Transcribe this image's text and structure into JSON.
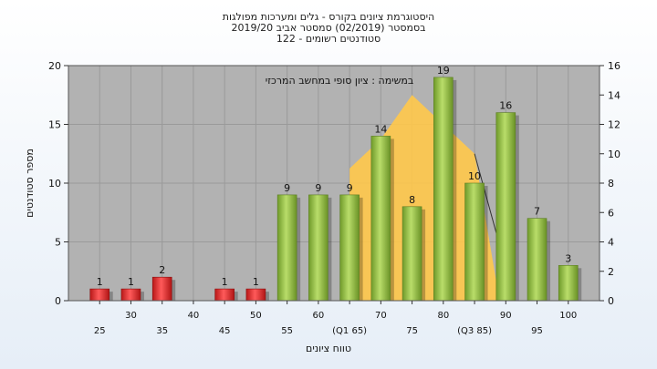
{
  "chart_data": {
    "type": "bar",
    "title_lines": [
      "היסטוגרמת ציונים בקורס - גלים ומערכות מפולגות",
      "בסמסטר  (02/2019)  סמסטר אביב  2019/20",
      "סטודנטים רשומים - 122"
    ],
    "annotation": "במשימה : ציון סופי במחשב המרכזי",
    "ylabel": "מספר סטודנטים",
    "xlabel": "טווח ציונים",
    "ylim": [
      0,
      20
    ],
    "y_ticks": [
      0,
      5,
      10,
      15,
      20
    ],
    "y2lim": [
      0,
      16
    ],
    "y2_ticks": [
      0,
      2,
      4,
      6,
      8,
      10,
      12,
      14,
      16
    ],
    "x_ticks": [
      {
        "label": "25",
        "x": 25
      },
      {
        "label": "30",
        "x": 30
      },
      {
        "label": "35",
        "x": 35
      },
      {
        "label": "40",
        "x": 40
      },
      {
        "label": "45",
        "x": 45
      },
      {
        "label": "50",
        "x": 50
      },
      {
        "label": "55",
        "x": 55
      },
      {
        "label": "60",
        "x": 60
      },
      {
        "label": "(Q1 65)",
        "x": 65
      },
      {
        "label": "70",
        "x": 70
      },
      {
        "label": "75",
        "x": 75
      },
      {
        "label": "80",
        "x": 80
      },
      {
        "label": "(Q3 85)",
        "x": 85
      },
      {
        "label": "90",
        "x": 90
      },
      {
        "label": "95",
        "x": 95
      },
      {
        "label": "100",
        "x": 100
      }
    ],
    "bars": [
      {
        "x": 25,
        "value": 1,
        "color": "#dd2222"
      },
      {
        "x": 30,
        "value": 1,
        "color": "#dd2222"
      },
      {
        "x": 35,
        "value": 2,
        "color": "#dd2222"
      },
      {
        "x": 45,
        "value": 1,
        "color": "#dd2222"
      },
      {
        "x": 50,
        "value": 1,
        "color": "#dd2222"
      },
      {
        "x": 55,
        "value": 9,
        "color": "#88b83a"
      },
      {
        "x": 60,
        "value": 9,
        "color": "#88b83a"
      },
      {
        "x": 65,
        "value": 9,
        "color": "#88b83a"
      },
      {
        "x": 70,
        "value": 14,
        "color": "#88b83a"
      },
      {
        "x": 75,
        "value": 8,
        "color": "#88b83a"
      },
      {
        "x": 80,
        "value": 19,
        "color": "#88b83a"
      },
      {
        "x": 85,
        "value": 10,
        "color": "#88b83a"
      },
      {
        "x": 90,
        "value": 16,
        "color": "#88b83a"
      },
      {
        "x": 95,
        "value": 7,
        "color": "#88b83a"
      },
      {
        "x": 100,
        "value": 3,
        "color": "#88b83a"
      }
    ],
    "distribution_area": {
      "color": "#ffc84a",
      "points": [
        [
          65,
          0
        ],
        [
          65,
          9
        ],
        [
          70,
          11
        ],
        [
          75,
          14
        ],
        [
          80,
          12
        ],
        [
          85,
          10
        ],
        [
          89,
          0
        ]
      ]
    },
    "grid": true,
    "plot_background": "#b2b2b2"
  }
}
